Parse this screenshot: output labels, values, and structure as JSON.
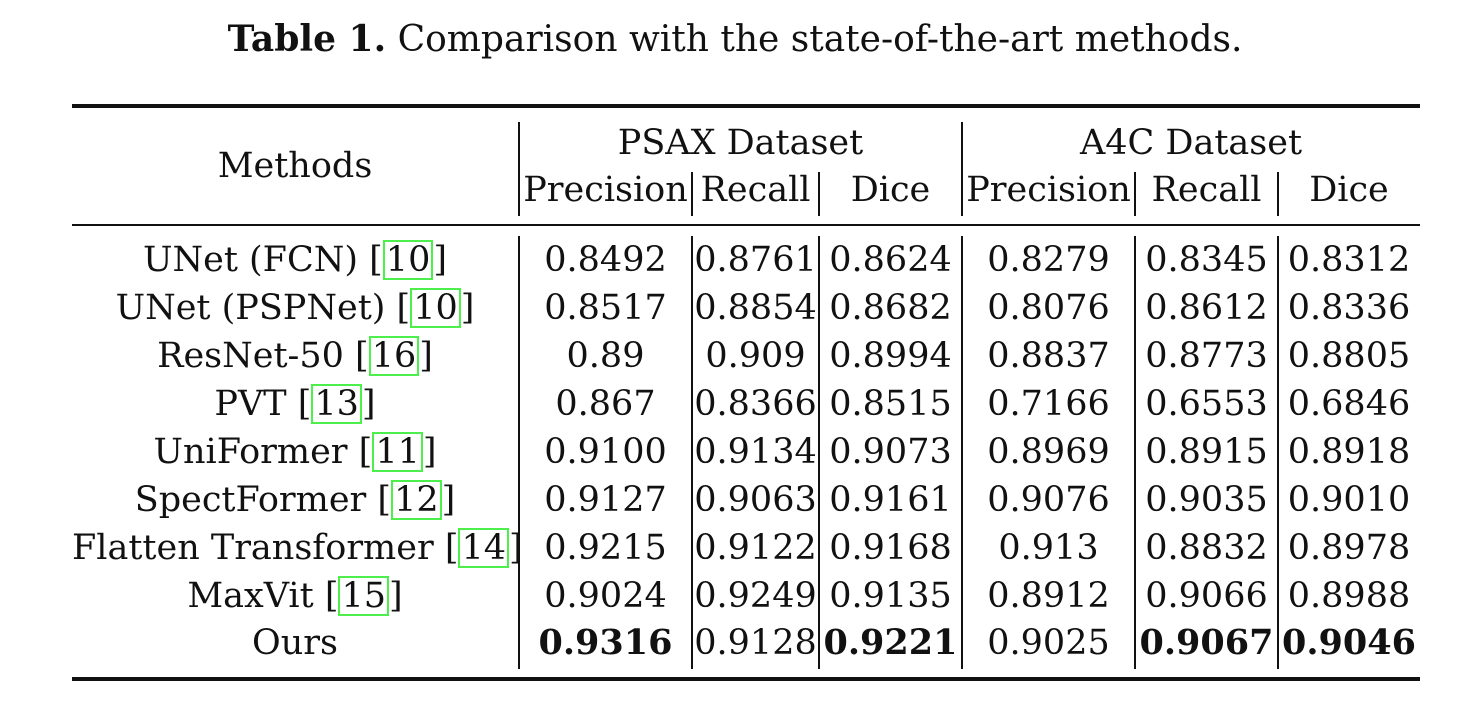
{
  "caption": {
    "label": "Table 1.",
    "text": "Comparison with the state-of-the-art methods."
  },
  "header": {
    "methods": "Methods",
    "groups": [
      "PSAX Dataset",
      "A4C Dataset"
    ],
    "columns": [
      "Precision",
      "Recall",
      "Dice",
      "Precision",
      "Recall",
      "Dice"
    ]
  },
  "rows": [
    {
      "method": "UNet (FCN)",
      "ref": "10",
      "values": [
        "0.8492",
        "0.8761",
        "0.8624",
        "0.8279",
        "0.8345",
        "0.8312"
      ],
      "bold": [
        false,
        false,
        false,
        false,
        false,
        false
      ]
    },
    {
      "method": "UNet (PSPNet)",
      "ref": "10",
      "values": [
        "0.8517",
        "0.8854",
        "0.8682",
        "0.8076",
        "0.8612",
        "0.8336"
      ],
      "bold": [
        false,
        false,
        false,
        false,
        false,
        false
      ]
    },
    {
      "method": "ResNet-50",
      "ref": "16",
      "values": [
        "0.89",
        "0.909",
        "0.8994",
        "0.8837",
        "0.8773",
        "0.8805"
      ],
      "bold": [
        false,
        false,
        false,
        false,
        false,
        false
      ]
    },
    {
      "method": "PVT",
      "ref": "13",
      "values": [
        "0.867",
        "0.8366",
        "0.8515",
        "0.7166",
        "0.6553",
        "0.6846"
      ],
      "bold": [
        false,
        false,
        false,
        false,
        false,
        false
      ]
    },
    {
      "method": "UniFormer",
      "ref": "11",
      "values": [
        "0.9100",
        "0.9134",
        "0.9073",
        "0.8969",
        "0.8915",
        "0.8918"
      ],
      "bold": [
        false,
        false,
        false,
        false,
        false,
        false
      ]
    },
    {
      "method": "SpectFormer",
      "ref": "12",
      "values": [
        "0.9127",
        "0.9063",
        "0.9161",
        "0.9076",
        "0.9035",
        "0.9010"
      ],
      "bold": [
        false,
        false,
        false,
        false,
        false,
        false
      ]
    },
    {
      "method": "Flatten Transformer",
      "ref": "14",
      "values": [
        "0.9215",
        "0.9122",
        "0.9168",
        "0.913",
        "0.8832",
        "0.8978"
      ],
      "bold": [
        false,
        false,
        false,
        false,
        false,
        false
      ]
    },
    {
      "method": "MaxVit",
      "ref": "15",
      "values": [
        "0.9024",
        "0.9249",
        "0.9135",
        "0.8912",
        "0.9066",
        "0.8988"
      ],
      "bold": [
        false,
        false,
        false,
        false,
        false,
        false
      ]
    },
    {
      "method": "Ours",
      "ref": null,
      "values": [
        "0.9316",
        "0.9128",
        "0.9221",
        "0.9025",
        "0.9067",
        "0.9046"
      ],
      "bold": [
        true,
        false,
        true,
        false,
        true,
        true
      ]
    }
  ],
  "colors": {
    "text": "#111111",
    "citation_box": "#4cef4c"
  }
}
